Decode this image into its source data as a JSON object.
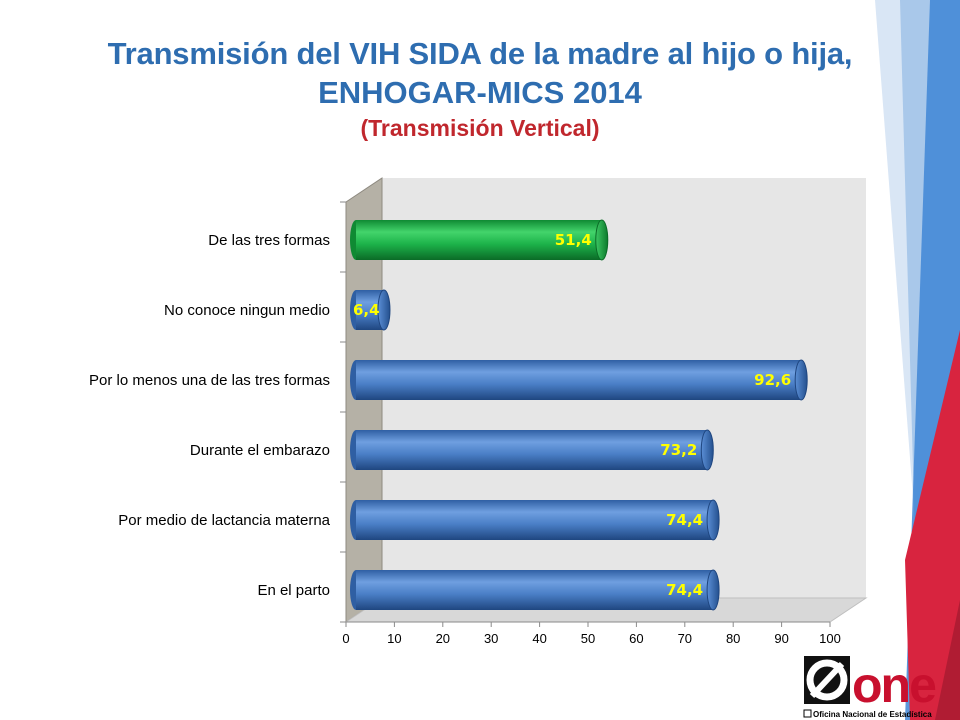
{
  "title": {
    "line1": "Transmisión del VIH SIDA de la madre al hijo o hija,",
    "line2": "ENHOGAR-MICS 2014",
    "line3": "(Transmisión Vertical)"
  },
  "logo": {
    "wordmark": "one",
    "tagline": "Oficina Nacional de Estadística"
  },
  "colors": {
    "bar_blue": "#4a7fc7",
    "bar_green": "#1db34a",
    "title_blue": "#2e6db0",
    "subtitle_red": "#c0272d",
    "label_yellow": "#ffff00"
  },
  "chart_data": {
    "type": "bar",
    "orientation": "horizontal",
    "style": "3d-cylinder",
    "categories": [
      "De las tres formas",
      "No conoce ningun medio",
      "Por lo menos una de las tres formas",
      "Durante el embarazo",
      "Por medio de lactancia materna",
      "En el parto"
    ],
    "values": [
      51.4,
      6.4,
      92.6,
      73.2,
      74.4,
      74.4
    ],
    "value_labels": [
      "51,4",
      "6,4",
      "92,6",
      "73,2",
      "74,4",
      "74,4"
    ],
    "highlight_index": 0,
    "xlim": [
      0,
      100
    ],
    "xticks": [
      0,
      10,
      20,
      30,
      40,
      50,
      60,
      70,
      80,
      90,
      100
    ],
    "grid": false,
    "legend": "none"
  }
}
